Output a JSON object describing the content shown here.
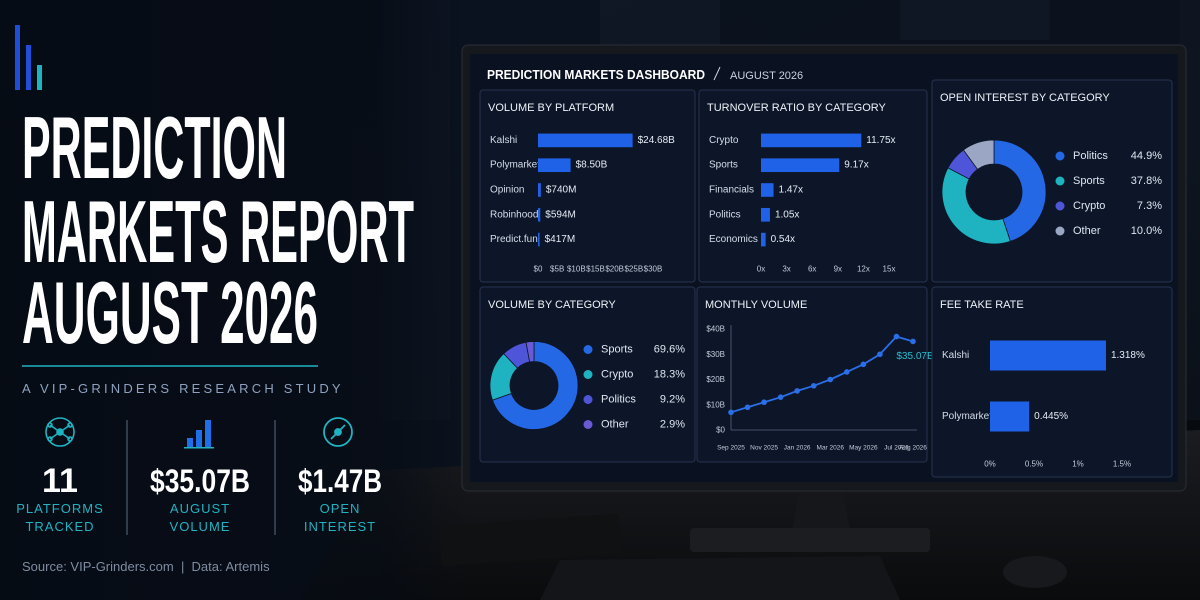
{
  "header": {
    "title_lines": [
      "PREDICTION",
      "MARKETS REPORT",
      "AUGUST 2026"
    ],
    "subtitle": "A VIP-GRINDERS RESEARCH STUDY"
  },
  "stats": [
    {
      "value": "11",
      "label": [
        "PLATFORMS",
        "TRACKED"
      ]
    },
    {
      "value": "$35.07B",
      "label": [
        "AUGUST",
        "VOLUME"
      ]
    },
    {
      "value": "$1.47B",
      "label": [
        "OPEN",
        "INTEREST"
      ]
    }
  ],
  "source": "Source: VIP-Grinders.com  |  Data: Artemis",
  "dashboard": {
    "title": "PREDICTION MARKETS DASHBOARD",
    "date": "AUGUST 2026"
  },
  "chart_data": [
    {
      "type": "bar",
      "horizontal": true,
      "title": "VOLUME BY PLATFORM",
      "categories": [
        "Kalshi",
        "Polymarket",
        "Opinion",
        "Robinhood",
        "Predict.fun"
      ],
      "values": [
        24.68,
        8.5,
        0.74,
        0.594,
        0.417
      ],
      "value_labels": [
        "$24.68B",
        "$8.50B",
        "$740M",
        "$594M",
        "$417M"
      ],
      "color": "#1f62e8",
      "xlim": [
        0,
        30
      ],
      "xticks": [
        {
          "value": 0,
          "label": "$0"
        },
        {
          "value": 5,
          "label": "$5B"
        },
        {
          "value": 10,
          "label": "$10B"
        },
        {
          "value": 15,
          "label": "$15B"
        },
        {
          "value": 20,
          "label": "$20B"
        },
        {
          "value": 25,
          "label": "$25B"
        },
        {
          "value": 30,
          "label": "$30B"
        }
      ]
    },
    {
      "type": "bar",
      "horizontal": true,
      "title": "TURNOVER RATIO BY CATEGORY",
      "categories": [
        "Crypto",
        "Sports",
        "Financials",
        "Politics",
        "Economics"
      ],
      "values": [
        11.75,
        9.17,
        1.47,
        1.05,
        0.54
      ],
      "value_labels": [
        "11.75x",
        "9.17x",
        "1.47x",
        "1.05x",
        "0.54x"
      ],
      "color": "#1f62e8",
      "xlim": [
        0,
        15
      ],
      "xticks": [
        {
          "value": 0,
          "label": "0x"
        },
        {
          "value": 3,
          "label": "3x"
        },
        {
          "value": 6,
          "label": "6x"
        },
        {
          "value": 9,
          "label": "9x"
        },
        {
          "value": 12,
          "label": "12x"
        },
        {
          "value": 15,
          "label": "15x"
        }
      ]
    },
    {
      "type": "donut",
      "title": "OPEN INTEREST BY CATEGORY",
      "categories": [
        "Politics",
        "Sports",
        "Crypto",
        "Other"
      ],
      "values": [
        44.9,
        37.8,
        7.3,
        10.0
      ],
      "value_labels": [
        "44.9%",
        "37.8%",
        "7.3%",
        "10.0%"
      ],
      "colors": [
        "#2468e6",
        "#1fb3c2",
        "#4f55d9",
        "#9aa6c4"
      ]
    },
    {
      "type": "donut",
      "title": "VOLUME BY CATEGORY",
      "categories": [
        "Sports",
        "Crypto",
        "Politics",
        "Other"
      ],
      "values": [
        69.6,
        18.3,
        9.2,
        2.9
      ],
      "value_labels": [
        "69.6%",
        "18.3%",
        "9.2%",
        "2.9%"
      ],
      "colors": [
        "#2468e6",
        "#1fb3c2",
        "#4f55d9",
        "#6a5ad6"
      ]
    },
    {
      "type": "line",
      "title": "MONTHLY VOLUME",
      "categories": [
        "Sep 2025",
        null,
        "Nov 2025",
        null,
        "Jan 2026",
        null,
        "Mar 2026",
        null,
        "May 2026",
        null,
        "Jul 2026",
        "Aug 2026"
      ],
      "values": [
        7,
        9,
        11,
        13,
        15.5,
        17.5,
        20,
        23,
        26,
        30,
        37,
        35.07
      ],
      "value_labels": [
        null,
        null,
        null,
        null,
        null,
        null,
        null,
        null,
        null,
        null,
        null,
        "$35.07B"
      ],
      "color": "#2a6fe8",
      "ylim": [
        0,
        40
      ],
      "yticks": [
        {
          "value": 0,
          "label": "$0"
        },
        {
          "value": 10,
          "label": "$10B"
        },
        {
          "value": 20,
          "label": "$20B"
        },
        {
          "value": 30,
          "label": "$30B"
        },
        {
          "value": 40,
          "label": "$40B"
        }
      ]
    },
    {
      "type": "bar",
      "horizontal": true,
      "title": "FEE TAKE RATE",
      "categories": [
        "Kalshi",
        "Polymarket"
      ],
      "values": [
        1.318,
        0.445
      ],
      "value_labels": [
        "1.318%",
        "0.445%"
      ],
      "color": "#1f62e8",
      "xlim": [
        0,
        1.5
      ],
      "xticks": [
        {
          "value": 0,
          "label": "0%"
        },
        {
          "value": 0.5,
          "label": "0.5%"
        },
        {
          "value": 1,
          "label": "1%"
        },
        {
          "value": 1.5,
          "label": "1.5%"
        }
      ]
    }
  ]
}
